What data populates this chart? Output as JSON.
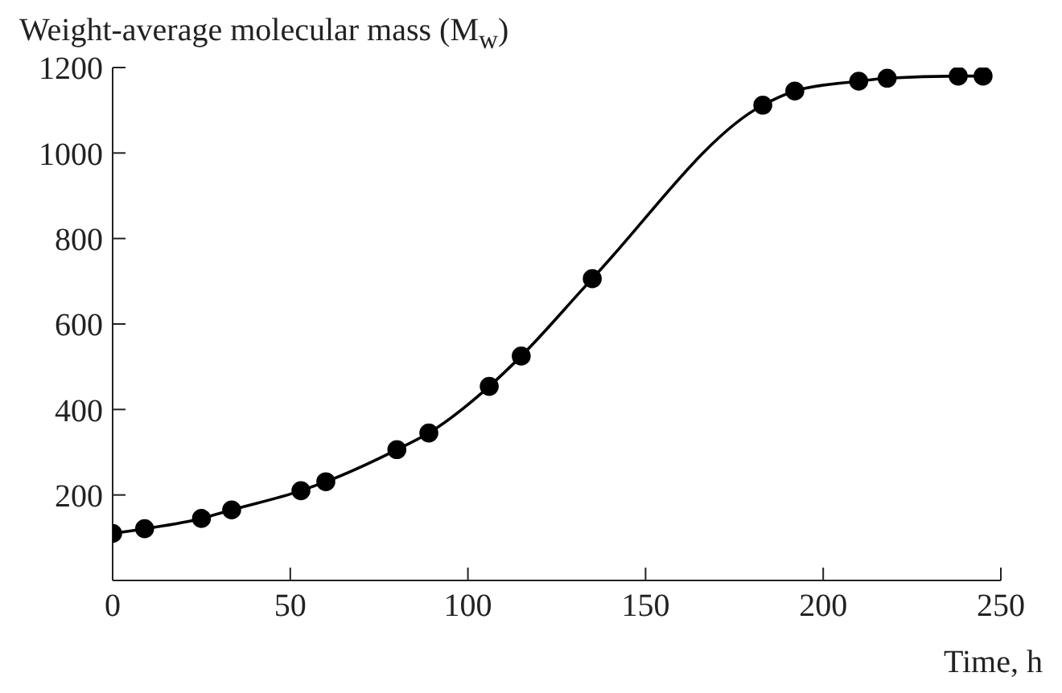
{
  "chart_data": {
    "type": "line",
    "ylabel": "Weight-average molecular mass (M$_{w}$)",
    "xlabel": "Time, h",
    "x": [
      0,
      9,
      25,
      33.5,
      53,
      60,
      80,
      89,
      106,
      115,
      135,
      183,
      192,
      210,
      218,
      238,
      245
    ],
    "values": [
      110,
      121,
      145,
      165,
      210,
      231,
      306,
      345,
      454,
      525,
      706,
      1112,
      1145,
      1168,
      1175,
      1180,
      1180
    ],
    "color": "#000000",
    "marker": "circle",
    "line_style": "solid",
    "grid": false,
    "legend": false,
    "xlim": [
      0,
      250
    ],
    "xticks": [
      0,
      50,
      100,
      150,
      200,
      250
    ],
    "ylim": [
      0,
      1200
    ],
    "yticks": [
      200,
      400,
      600,
      800,
      1000,
      1200
    ]
  }
}
